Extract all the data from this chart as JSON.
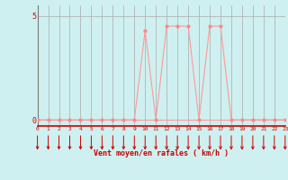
{
  "x": [
    0,
    1,
    2,
    3,
    4,
    5,
    6,
    7,
    8,
    9,
    10,
    11,
    12,
    13,
    14,
    15,
    16,
    17,
    18,
    19,
    20,
    21,
    22,
    23
  ],
  "y": [
    0,
    0,
    0,
    0,
    0,
    0,
    0,
    0,
    0,
    0,
    4.3,
    0,
    4.5,
    4.5,
    4.5,
    0,
    4.5,
    4.5,
    0,
    0,
    0,
    0,
    0,
    0
  ],
  "xlabel": "Vent moyen/en rafales ( km/h )",
  "xlim": [
    0,
    23
  ],
  "ylim": [
    -0.3,
    5.5
  ],
  "yticks": [
    0,
    5
  ],
  "xticks": [
    0,
    1,
    2,
    3,
    4,
    5,
    6,
    7,
    8,
    9,
    10,
    11,
    12,
    13,
    14,
    15,
    16,
    17,
    18,
    19,
    20,
    21,
    22,
    23
  ],
  "bg_color": "#cff0f0",
  "line_color": "#ff9999",
  "marker_color": "#ff8888",
  "grid_color": "#aaaaaa",
  "axis_color": "#cc0000",
  "label_color": "#cc0000",
  "tick_color": "#cc0000",
  "arrow_color": "#cc0000",
  "figsize": [
    3.2,
    2.0
  ],
  "dpi": 100
}
